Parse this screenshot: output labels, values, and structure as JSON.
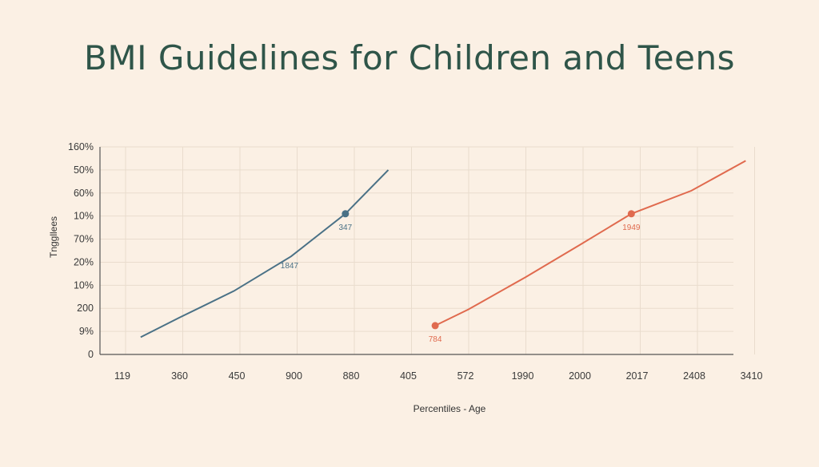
{
  "chart_data": {
    "type": "line",
    "title": "BMI Guidelines for Children and Teens",
    "xlabel": "Percentiles - Age",
    "ylabel": "Tnggllees",
    "x_ticks": [
      "119",
      "360",
      "450",
      "900",
      "880",
      "405",
      "572",
      "1990",
      "2000",
      "2017",
      "2408",
      "3410"
    ],
    "y_ticks": [
      "0",
      "9%",
      "200",
      "10%",
      "20%",
      "70%",
      "10%",
      "60%",
      "50%",
      "160%"
    ],
    "grid": true,
    "series": [
      {
        "color": "#4a7186",
        "points": [
          {
            "x": 0.32,
            "y": 0.75
          },
          {
            "x": 1.0,
            "y": 1.6
          },
          {
            "x": 1.95,
            "y": 2.75
          },
          {
            "x": 2.95,
            "y": 4.25
          },
          {
            "x": 3.9,
            "y": 6.1
          },
          {
            "x": 4.65,
            "y": 8.0
          }
        ],
        "marker": {
          "x": 3.9,
          "y": 6.1,
          "label": "347"
        },
        "annotation": {
          "x": 2.95,
          "y": 4.25,
          "label": "1847"
        }
      },
      {
        "color": "#e06a4e",
        "points": [
          {
            "x": 5.47,
            "y": 1.25
          },
          {
            "x": 6.05,
            "y": 1.95
          },
          {
            "x": 7.05,
            "y": 3.35
          },
          {
            "x": 8.0,
            "y": 4.75
          },
          {
            "x": 8.9,
            "y": 6.1
          },
          {
            "x": 9.95,
            "y": 7.1
          },
          {
            "x": 10.9,
            "y": 8.4
          }
        ],
        "marker": {
          "x": 5.47,
          "y": 1.25,
          "label": "784"
        },
        "marker2": {
          "x": 8.9,
          "y": 6.1,
          "label": "1949"
        }
      }
    ]
  }
}
